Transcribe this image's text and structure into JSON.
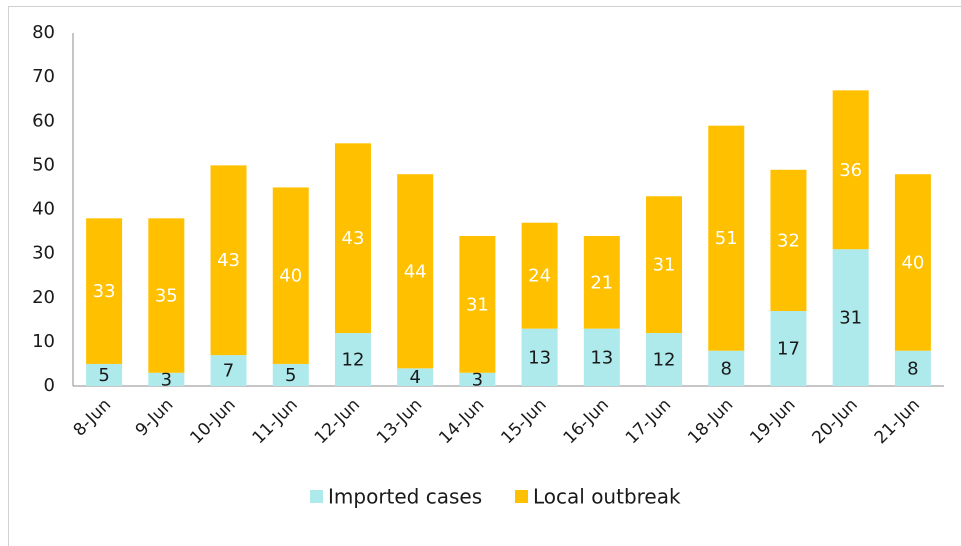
{
  "chart_data": {
    "type": "stacked_bar",
    "categories": [
      "8-Jun",
      "9-Jun",
      "10-Jun",
      "11-Jun",
      "12-Jun",
      "13-Jun",
      "14-Jun",
      "15-Jun",
      "16-Jun",
      "17-Jun",
      "18-Jun",
      "19-Jun",
      "20-Jun",
      "21-Jun"
    ],
    "series": [
      {
        "name": "Imported cases",
        "color": "#aeeaec",
        "label_color": "#1a1a1a",
        "values": [
          5,
          3,
          7,
          5,
          12,
          4,
          3,
          13,
          13,
          12,
          8,
          17,
          31,
          8
        ]
      },
      {
        "name": "Local outbreak",
        "color": "#ffc000",
        "label_color": "#ffffff",
        "values": [
          33,
          35,
          43,
          40,
          43,
          44,
          31,
          24,
          21,
          31,
          51,
          32,
          36,
          40
        ]
      }
    ],
    "ylim": [
      0,
      80
    ],
    "yticks": [
      0,
      10,
      20,
      30,
      40,
      50,
      60,
      70,
      80
    ],
    "grid": false,
    "legend": "bottom"
  }
}
